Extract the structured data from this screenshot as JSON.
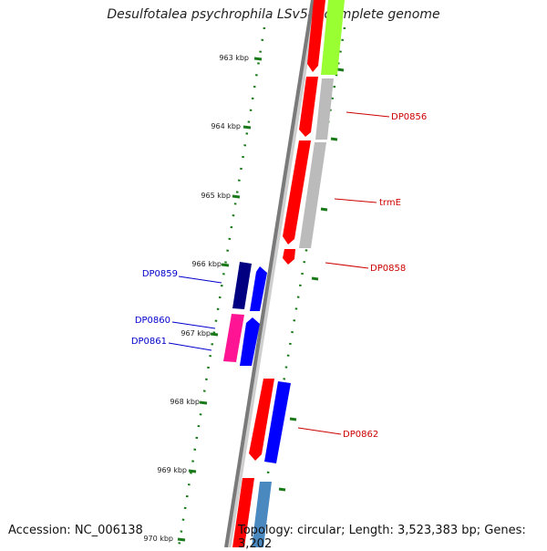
{
  "title": "Desulfotalea psychrophila LSv54, complete genome",
  "footer": {
    "accession": "Accession: NC_006138",
    "summary": "Topology: circular; Length: 3,523,383 bp; Genes: 3,202"
  },
  "ticks": [
    "963 kbp",
    "964 kbp",
    "965 kbp",
    "966 kbp",
    "967 kbp",
    "968 kbp",
    "969 kbp",
    "970 kbp"
  ],
  "gene_labels": {
    "DP0856": "DP0856",
    "trmE": "trmE",
    "DP0858": "DP0858",
    "DP0859": "DP0859",
    "DP0860": "DP0860",
    "DP0861": "DP0861",
    "DP0862": "DP0862"
  },
  "colors": {
    "red": "#ff0000",
    "lime": "#99ff33",
    "gray": "#bbbbbb",
    "navy": "#000080",
    "blue": "#0000ff",
    "magenta": "#ff1493",
    "steelblue": "#4a88c0",
    "tick_green": "#1a7a1a",
    "label_red": "#cc0000",
    "label_blue": "#0000cc"
  }
}
